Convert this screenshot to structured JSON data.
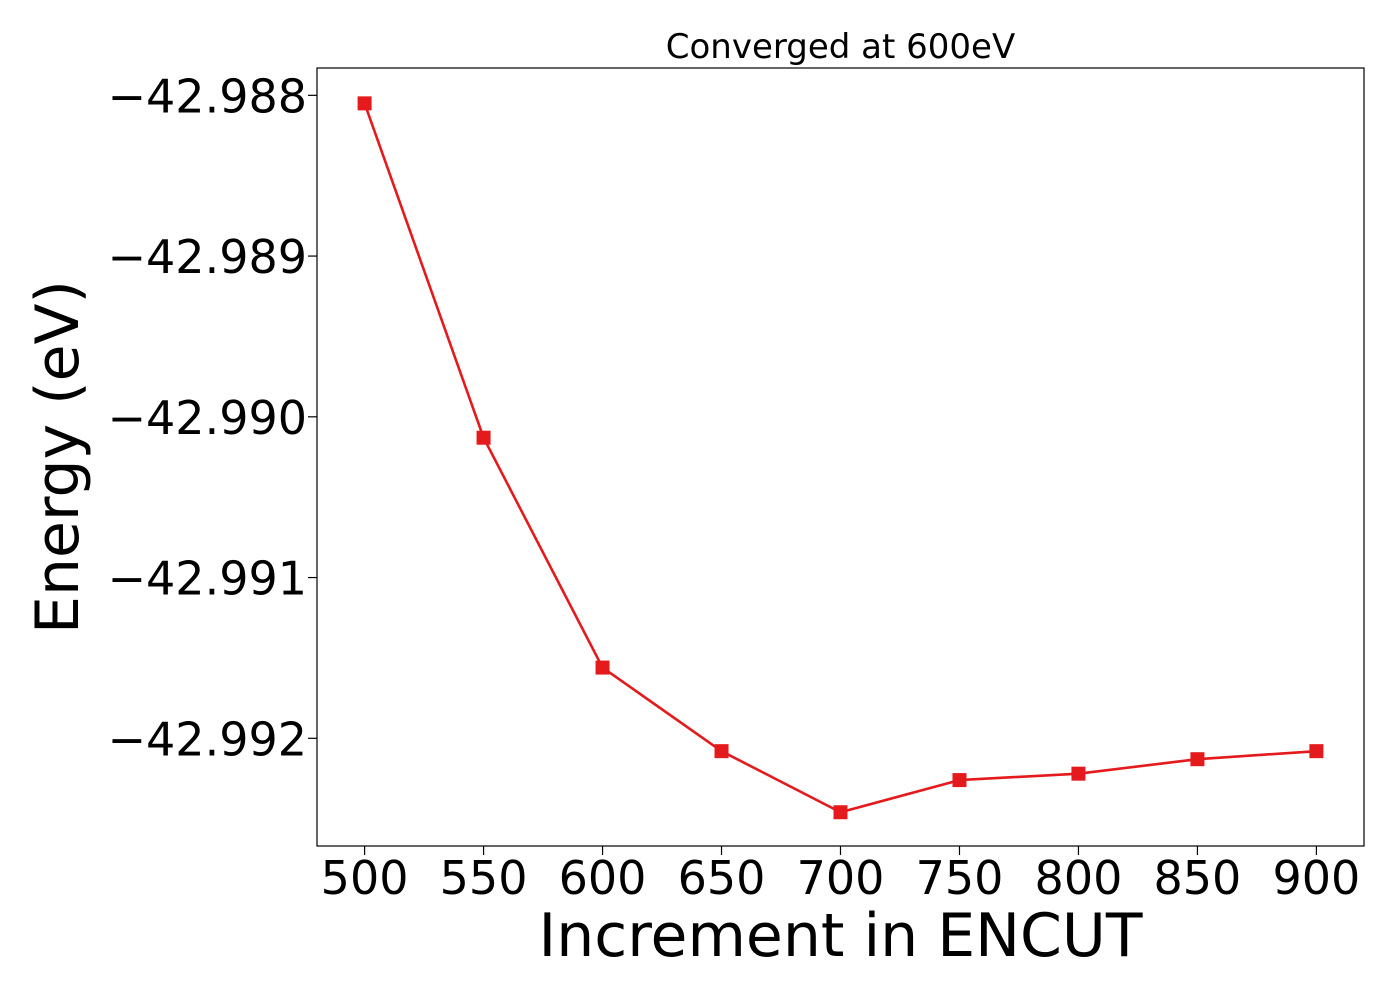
{
  "chart_data": {
    "type": "line",
    "title": "Converged at 600eV",
    "xlabel": "Increment in ENCUT",
    "ylabel": "Energy (eV)",
    "x": [
      500,
      550,
      600,
      650,
      700,
      750,
      800,
      850,
      900
    ],
    "series": [
      {
        "values": [
          -42.98805,
          -42.99013,
          -42.99156,
          -42.99208,
          -42.99246,
          -42.99226,
          -42.99222,
          -42.99213,
          -42.99208
        ],
        "color": "#e41a1c",
        "marker": "square"
      }
    ],
    "xticks": [
      500,
      550,
      600,
      650,
      700,
      750,
      800,
      850,
      900
    ],
    "xtick_labels": [
      "500",
      "550",
      "600",
      "650",
      "700",
      "750",
      "800",
      "850",
      "900"
    ],
    "yticks": [
      -42.988,
      -42.989,
      -42.99,
      -42.991,
      -42.992
    ],
    "ytick_labels": [
      "−42.988",
      "−42.989",
      "−42.990",
      "−42.991",
      "−42.992"
    ],
    "xlim": [
      480,
      920
    ],
    "ylim": [
      -42.99267,
      -42.98783
    ],
    "grid": false,
    "legend": "none"
  }
}
